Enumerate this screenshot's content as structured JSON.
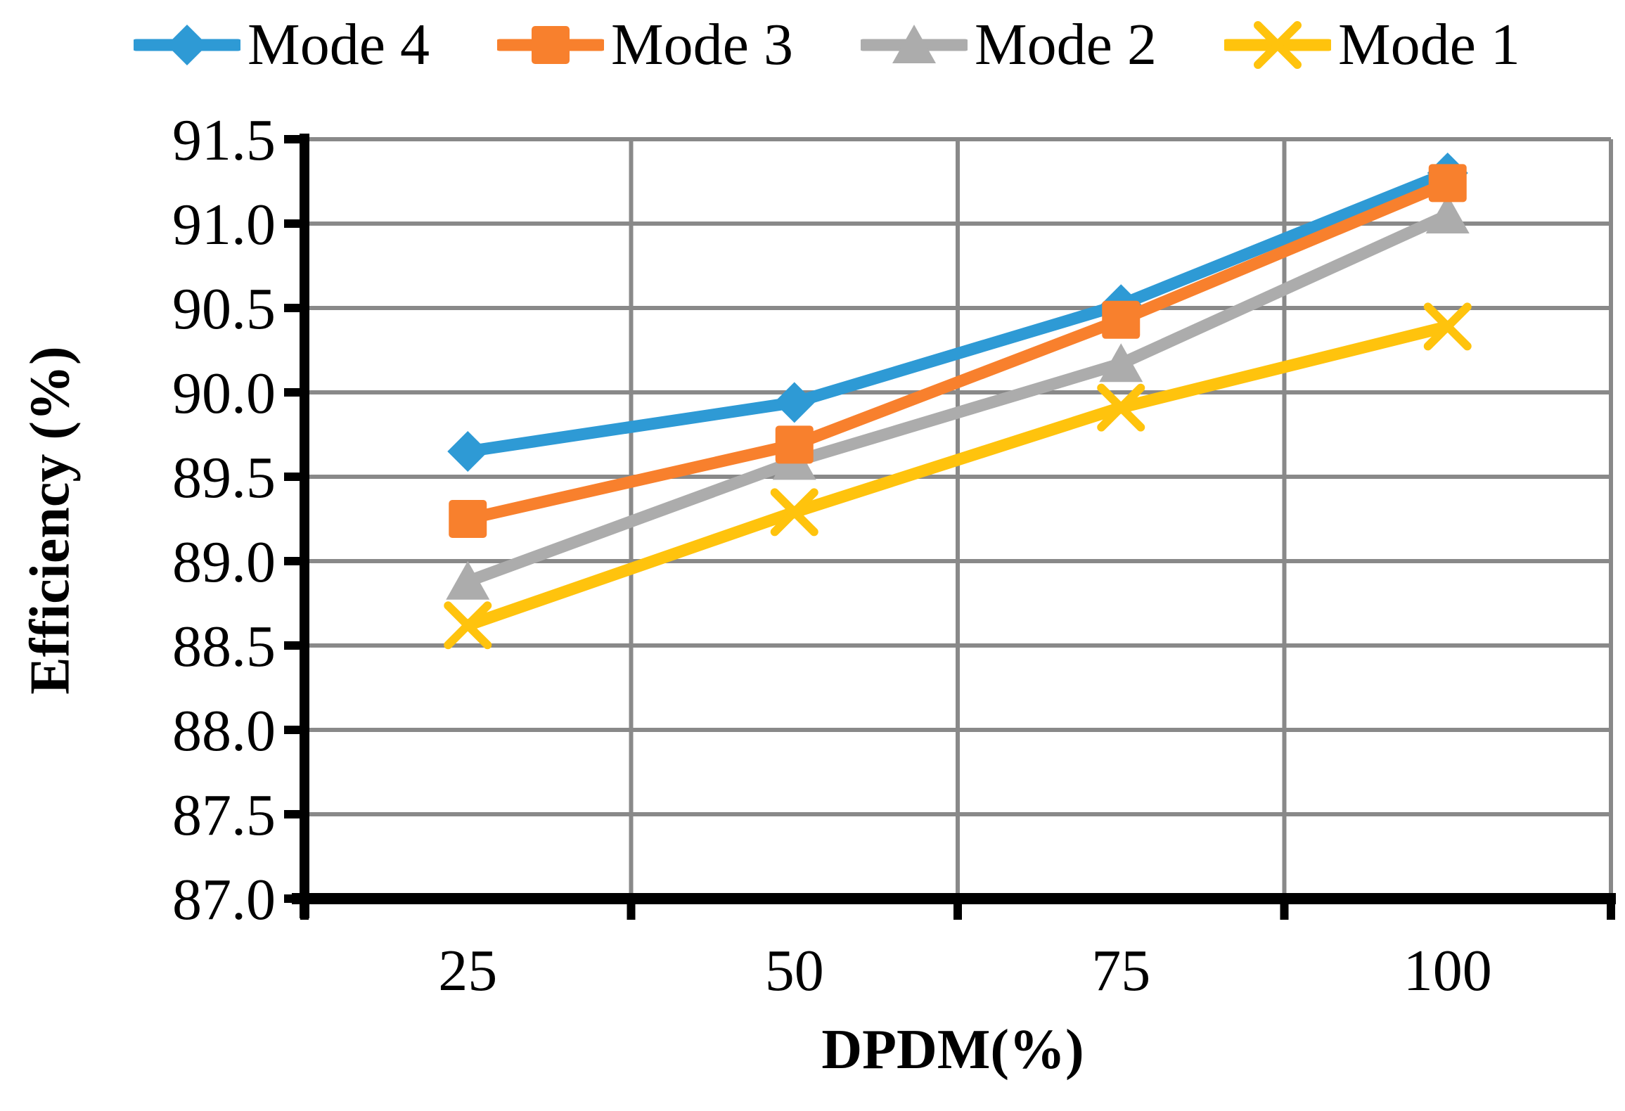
{
  "chart_data": {
    "type": "line",
    "title": "",
    "xlabel": "DPDM(%)",
    "ylabel": "Efficiency (%)",
    "x_categories": [
      "25",
      "50",
      "75",
      "100"
    ],
    "y_tick_labels": [
      "91.5",
      "91.0",
      "90.5",
      "90.0",
      "89.5",
      "89.0",
      "88.5",
      "88.0",
      "87.5",
      "87.0"
    ],
    "ylim": [
      87.0,
      91.5
    ],
    "y_step": 0.5,
    "grid": "on",
    "legend_position": "top",
    "series": [
      {
        "name": "Mode 4",
        "color": "#2E9AD5",
        "marker": "diamond",
        "values": [
          89.65,
          89.94,
          90.52,
          91.3
        ]
      },
      {
        "name": "Mode 3",
        "color": "#F8802D",
        "marker": "square",
        "values": [
          89.25,
          89.69,
          90.43,
          91.24
        ]
      },
      {
        "name": "Mode 2",
        "color": "#ACACAC",
        "marker": "triangle",
        "values": [
          88.88,
          89.59,
          90.17,
          91.05
        ]
      },
      {
        "name": "Mode 1",
        "color": "#FFC30D",
        "marker": "x",
        "values": [
          88.62,
          89.29,
          89.91,
          90.39
        ]
      }
    ],
    "draw_order": [
      0,
      2,
      3,
      1
    ],
    "axis_color": "#000000",
    "gridline_color": "#898989"
  }
}
